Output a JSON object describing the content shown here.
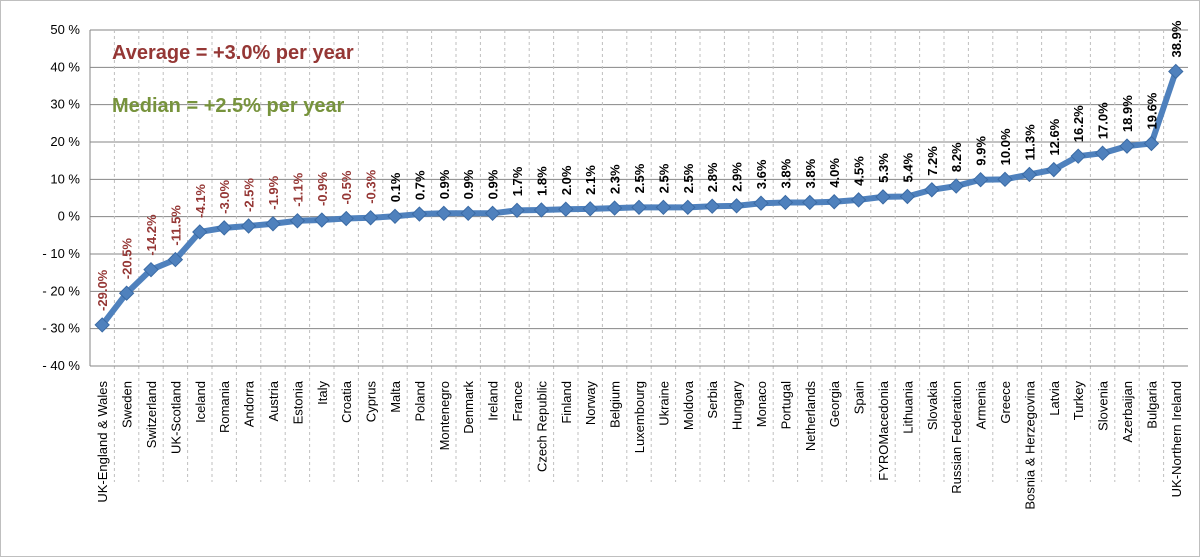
{
  "chart_data": {
    "type": "line",
    "categories": [
      "UK-England & Wales",
      "Sweden",
      "Switzerland",
      "UK-Scotland",
      "Iceland",
      "Romania",
      "Andorra",
      "Austria",
      "Estonia",
      "Italy",
      "Croatia",
      "Cyprus",
      "Malta",
      "Poland",
      "Montenegro",
      "Denmark",
      "Ireland",
      "France",
      "Czech Republic",
      "Finland",
      "Norway",
      "Belgium",
      "Luxembourg",
      "Ukraine",
      "Moldova",
      "Serbia",
      "Hungary",
      "Monaco",
      "Portugal",
      "Netherlands",
      "Georgia",
      "Spain",
      "FYROMacedonia",
      "Lithuania",
      "Slovakia",
      "Russian Federation",
      "Armenia",
      "Greece",
      "Bosnia & Herzegovina",
      "Latvia",
      "Turkey",
      "Slovenia",
      "Azerbaijan",
      "Bulgaria",
      "UK-Northern Ireland"
    ],
    "values": [
      -29.0,
      -20.5,
      -14.2,
      -11.5,
      -4.1,
      -3.0,
      -2.5,
      -1.9,
      -1.1,
      -0.9,
      -0.5,
      -0.3,
      0.1,
      0.7,
      0.9,
      0.9,
      0.9,
      1.7,
      1.8,
      2.0,
      2.1,
      2.3,
      2.5,
      2.5,
      2.5,
      2.8,
      2.9,
      3.6,
      3.8,
      3.8,
      4.0,
      4.5,
      5.3,
      5.4,
      7.2,
      8.2,
      9.9,
      10.0,
      11.3,
      12.6,
      16.2,
      17.0,
      18.9,
      19.6,
      38.9
    ],
    "data_labels": [
      "-29.0%",
      "-20.5%",
      "-14.2%",
      "-11.5%",
      "-4.1%",
      "-3.0%",
      "-2.5%",
      "-1.9%",
      "-1.1%",
      "-0.9%",
      "-0.5%",
      "-0.3%",
      "0.1%",
      "0.7%",
      "0.9%",
      "0.9%",
      "0.9%",
      "1.7%",
      "1.8%",
      "2.0%",
      "2.1%",
      "2.3%",
      "2.5%",
      "2.5%",
      "2.5%",
      "2.8%",
      "2.9%",
      "3.6%",
      "3.8%",
      "3.8%",
      "4.0%",
      "4.5%",
      "5.3%",
      "5.4%",
      "7.2%",
      "8.2%",
      "9.9%",
      "10.0%",
      "11.3%",
      "12.6%",
      "16.2%",
      "17.0%",
      "18.9%",
      "19.6%",
      "38.9%"
    ],
    "ylim": [
      -40,
      50
    ],
    "yticks": [
      -40,
      -30,
      -20,
      -10,
      0,
      10,
      20,
      30,
      40,
      50
    ],
    "ytick_labels": [
      "- 40 %",
      "- 30 %",
      "- 20 %",
      "- 10 %",
      "0 %",
      "10 %",
      "20 %",
      "30 %",
      "40 %",
      "50 %"
    ],
    "grid": "horizontal solid, vertical dashed",
    "annotations": [
      {
        "name": "average",
        "text": "Average = +3.0% per year",
        "color": "#953735"
      },
      {
        "name": "median",
        "text": "Median = +2.5% per year",
        "color": "#77933c"
      }
    ],
    "colors": {
      "line": "#4f81bd",
      "marker": "#4f81bd",
      "negative_label": "#953735",
      "positive_label": "#000000"
    }
  }
}
